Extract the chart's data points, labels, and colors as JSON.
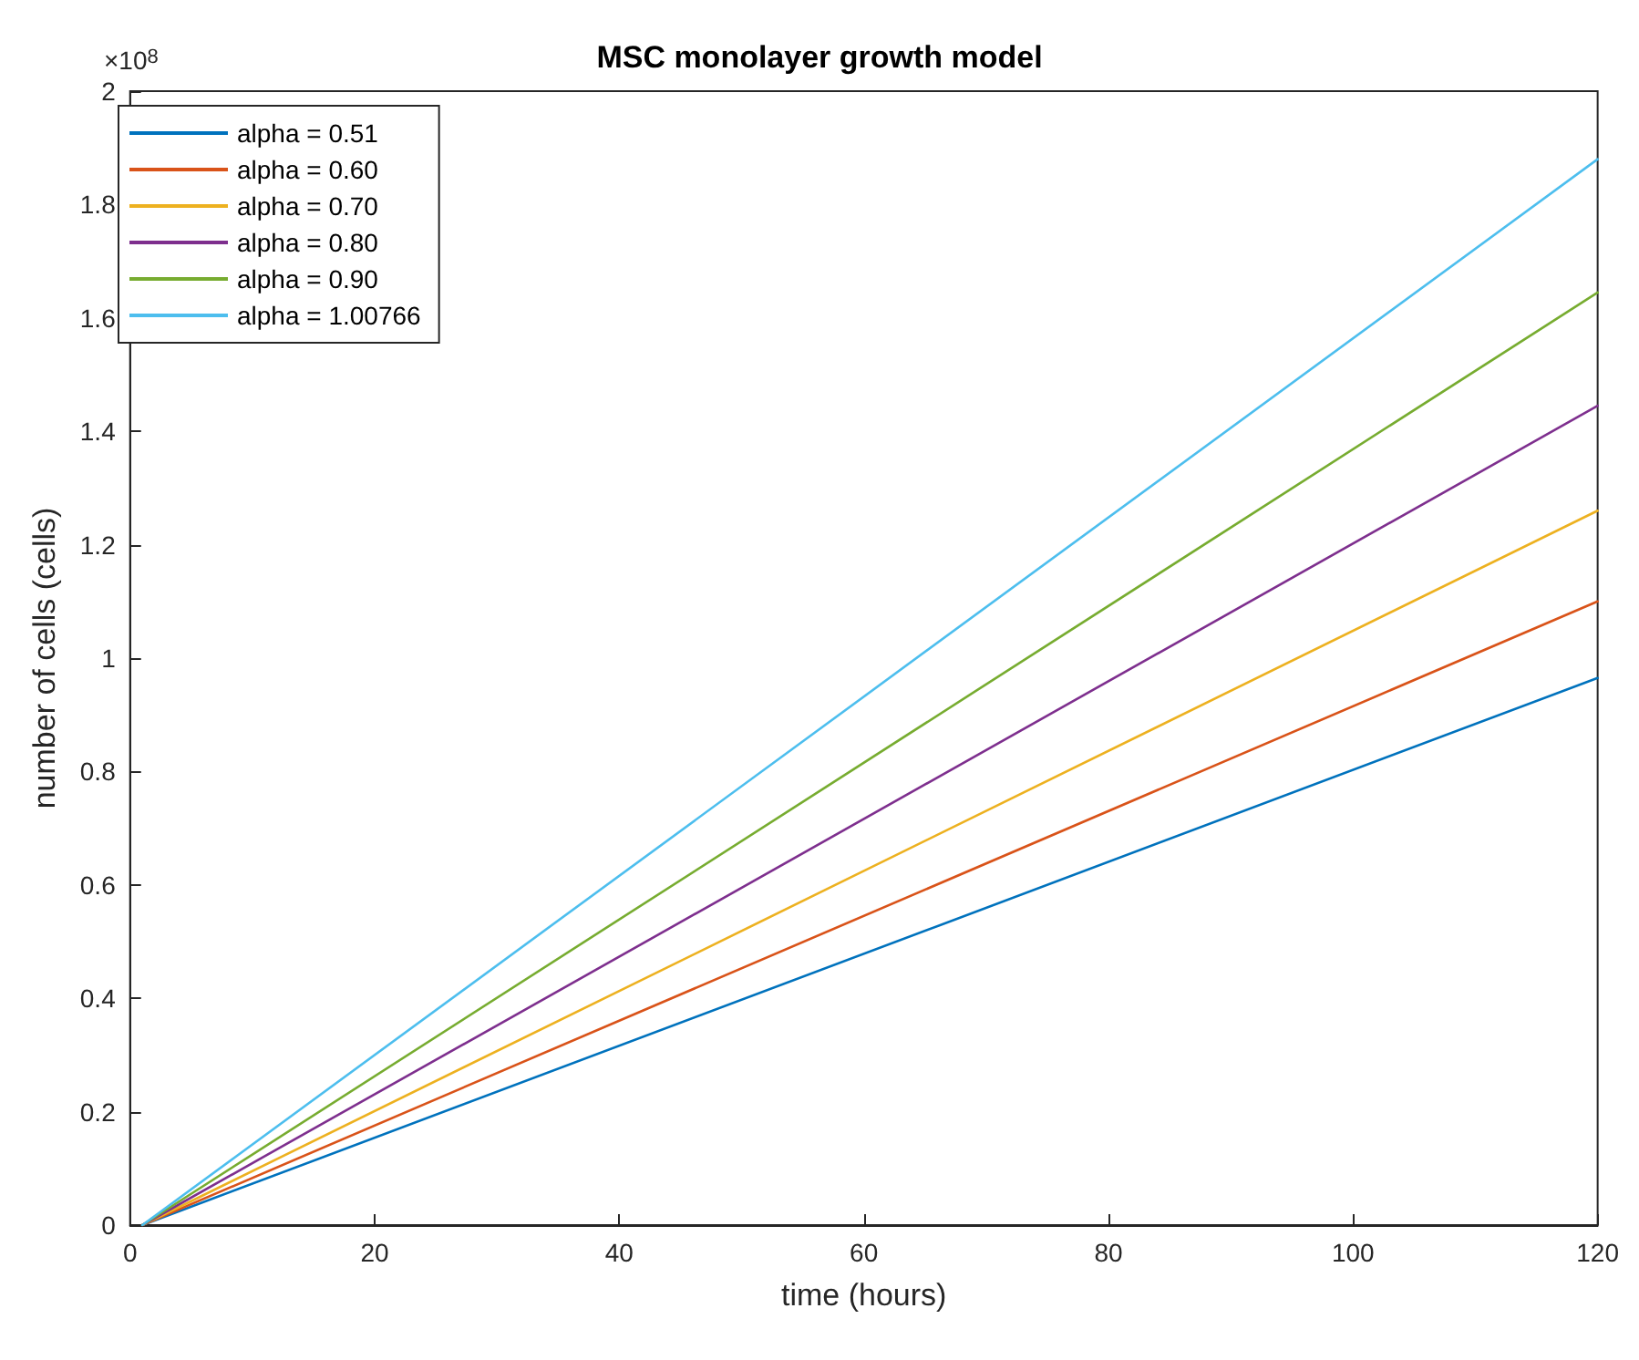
{
  "chart_data": {
    "type": "line",
    "title": "MSC monolayer growth model",
    "xlabel": "time (hours)",
    "ylabel": "number of cells (cells)",
    "annotations": [
      "×10$^{8}$"
    ],
    "xlim": [
      0,
      120
    ],
    "xticks": [
      0,
      20,
      40,
      60,
      80,
      100,
      120
    ],
    "ylim": [
      0,
      2
    ],
    "yticks": [
      0,
      0.2,
      0.4,
      0.6,
      0.8,
      1,
      1.2,
      1.4,
      1.6,
      1.8,
      2
    ],
    "grid": false,
    "legend": "top left",
    "marker": "none",
    "line_style": "solid",
    "x": [
      1,
      120
    ],
    "series": [
      {
        "name": "alpha = 0.51",
        "color": "#0072bd",
        "values": [
          0,
          0.965
        ]
      },
      {
        "name": "alpha = 0.60",
        "color": "#d95319",
        "values": [
          0,
          1.1
        ]
      },
      {
        "name": "alpha = 0.70",
        "color": "#edb120",
        "values": [
          0,
          1.26
        ]
      },
      {
        "name": "alpha = 0.80",
        "color": "#7e2f8e",
        "values": [
          0,
          1.445
        ]
      },
      {
        "name": "alpha = 0.90",
        "color": "#77ac30",
        "values": [
          0,
          1.645
        ]
      },
      {
        "name": "alpha = 1.00766",
        "color": "#4dbeee",
        "values": [
          0,
          1.88
        ]
      }
    ]
  }
}
